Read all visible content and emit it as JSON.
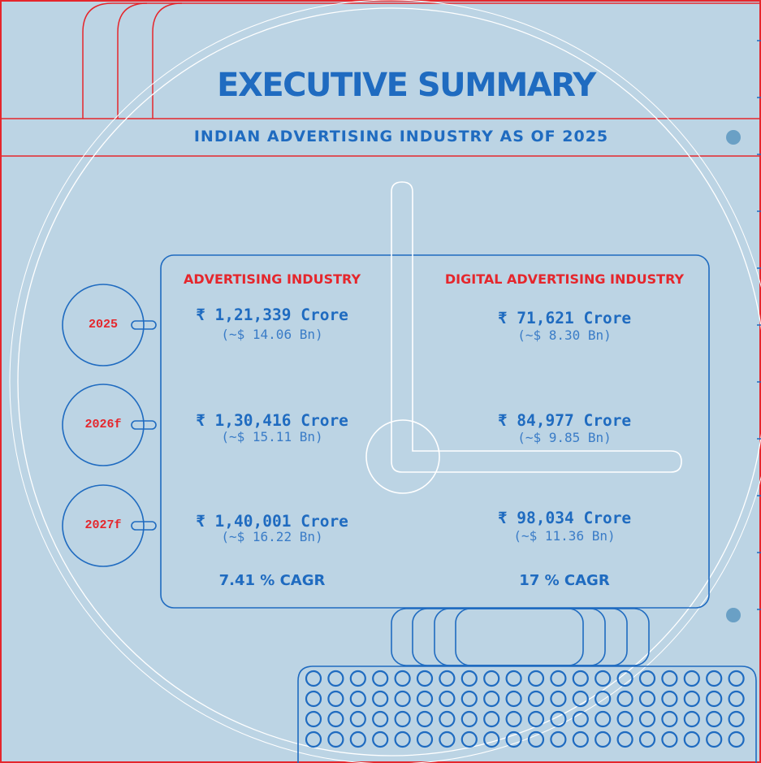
{
  "header": {
    "title": "EXECUTIVE SUMMARY",
    "subtitle": "INDIAN ADVERTISING INDUSTRY AS OF 2025"
  },
  "columns": {
    "left_title": "ADVERTISING INDUSTRY",
    "right_title": "DIGITAL ADVERTISING INDUSTRY"
  },
  "years": [
    "2025",
    "2026f",
    "2027f"
  ],
  "rows": [
    {
      "advertising": {
        "value": "₹ 1,21,339 Crore",
        "usd": "(~$ 14.06 Bn)"
      },
      "digital": {
        "value": "₹ 71,621 Crore",
        "usd": "(~$ 8.30 Bn)"
      }
    },
    {
      "advertising": {
        "value": "₹ 1,30,416 Crore",
        "usd": "(~$ 15.11 Bn)"
      },
      "digital": {
        "value": "₹ 84,977 Crore",
        "usd": "(~$ 9.85 Bn)"
      }
    },
    {
      "advertising": {
        "value": "₹ 1,40,001 Crore",
        "usd": "(~$ 16.22 Bn)"
      },
      "digital": {
        "value": "₹ 98,034 Crore",
        "usd": "(~$ 11.36 Bn)"
      }
    }
  ],
  "cagr": {
    "advertising": "7.41 % CAGR",
    "digital": "17 % CAGR"
  },
  "colors": {
    "background": "#bcd4e4",
    "blue": "#1f6bc0",
    "red": "#e5262c",
    "white": "#ffffff"
  }
}
